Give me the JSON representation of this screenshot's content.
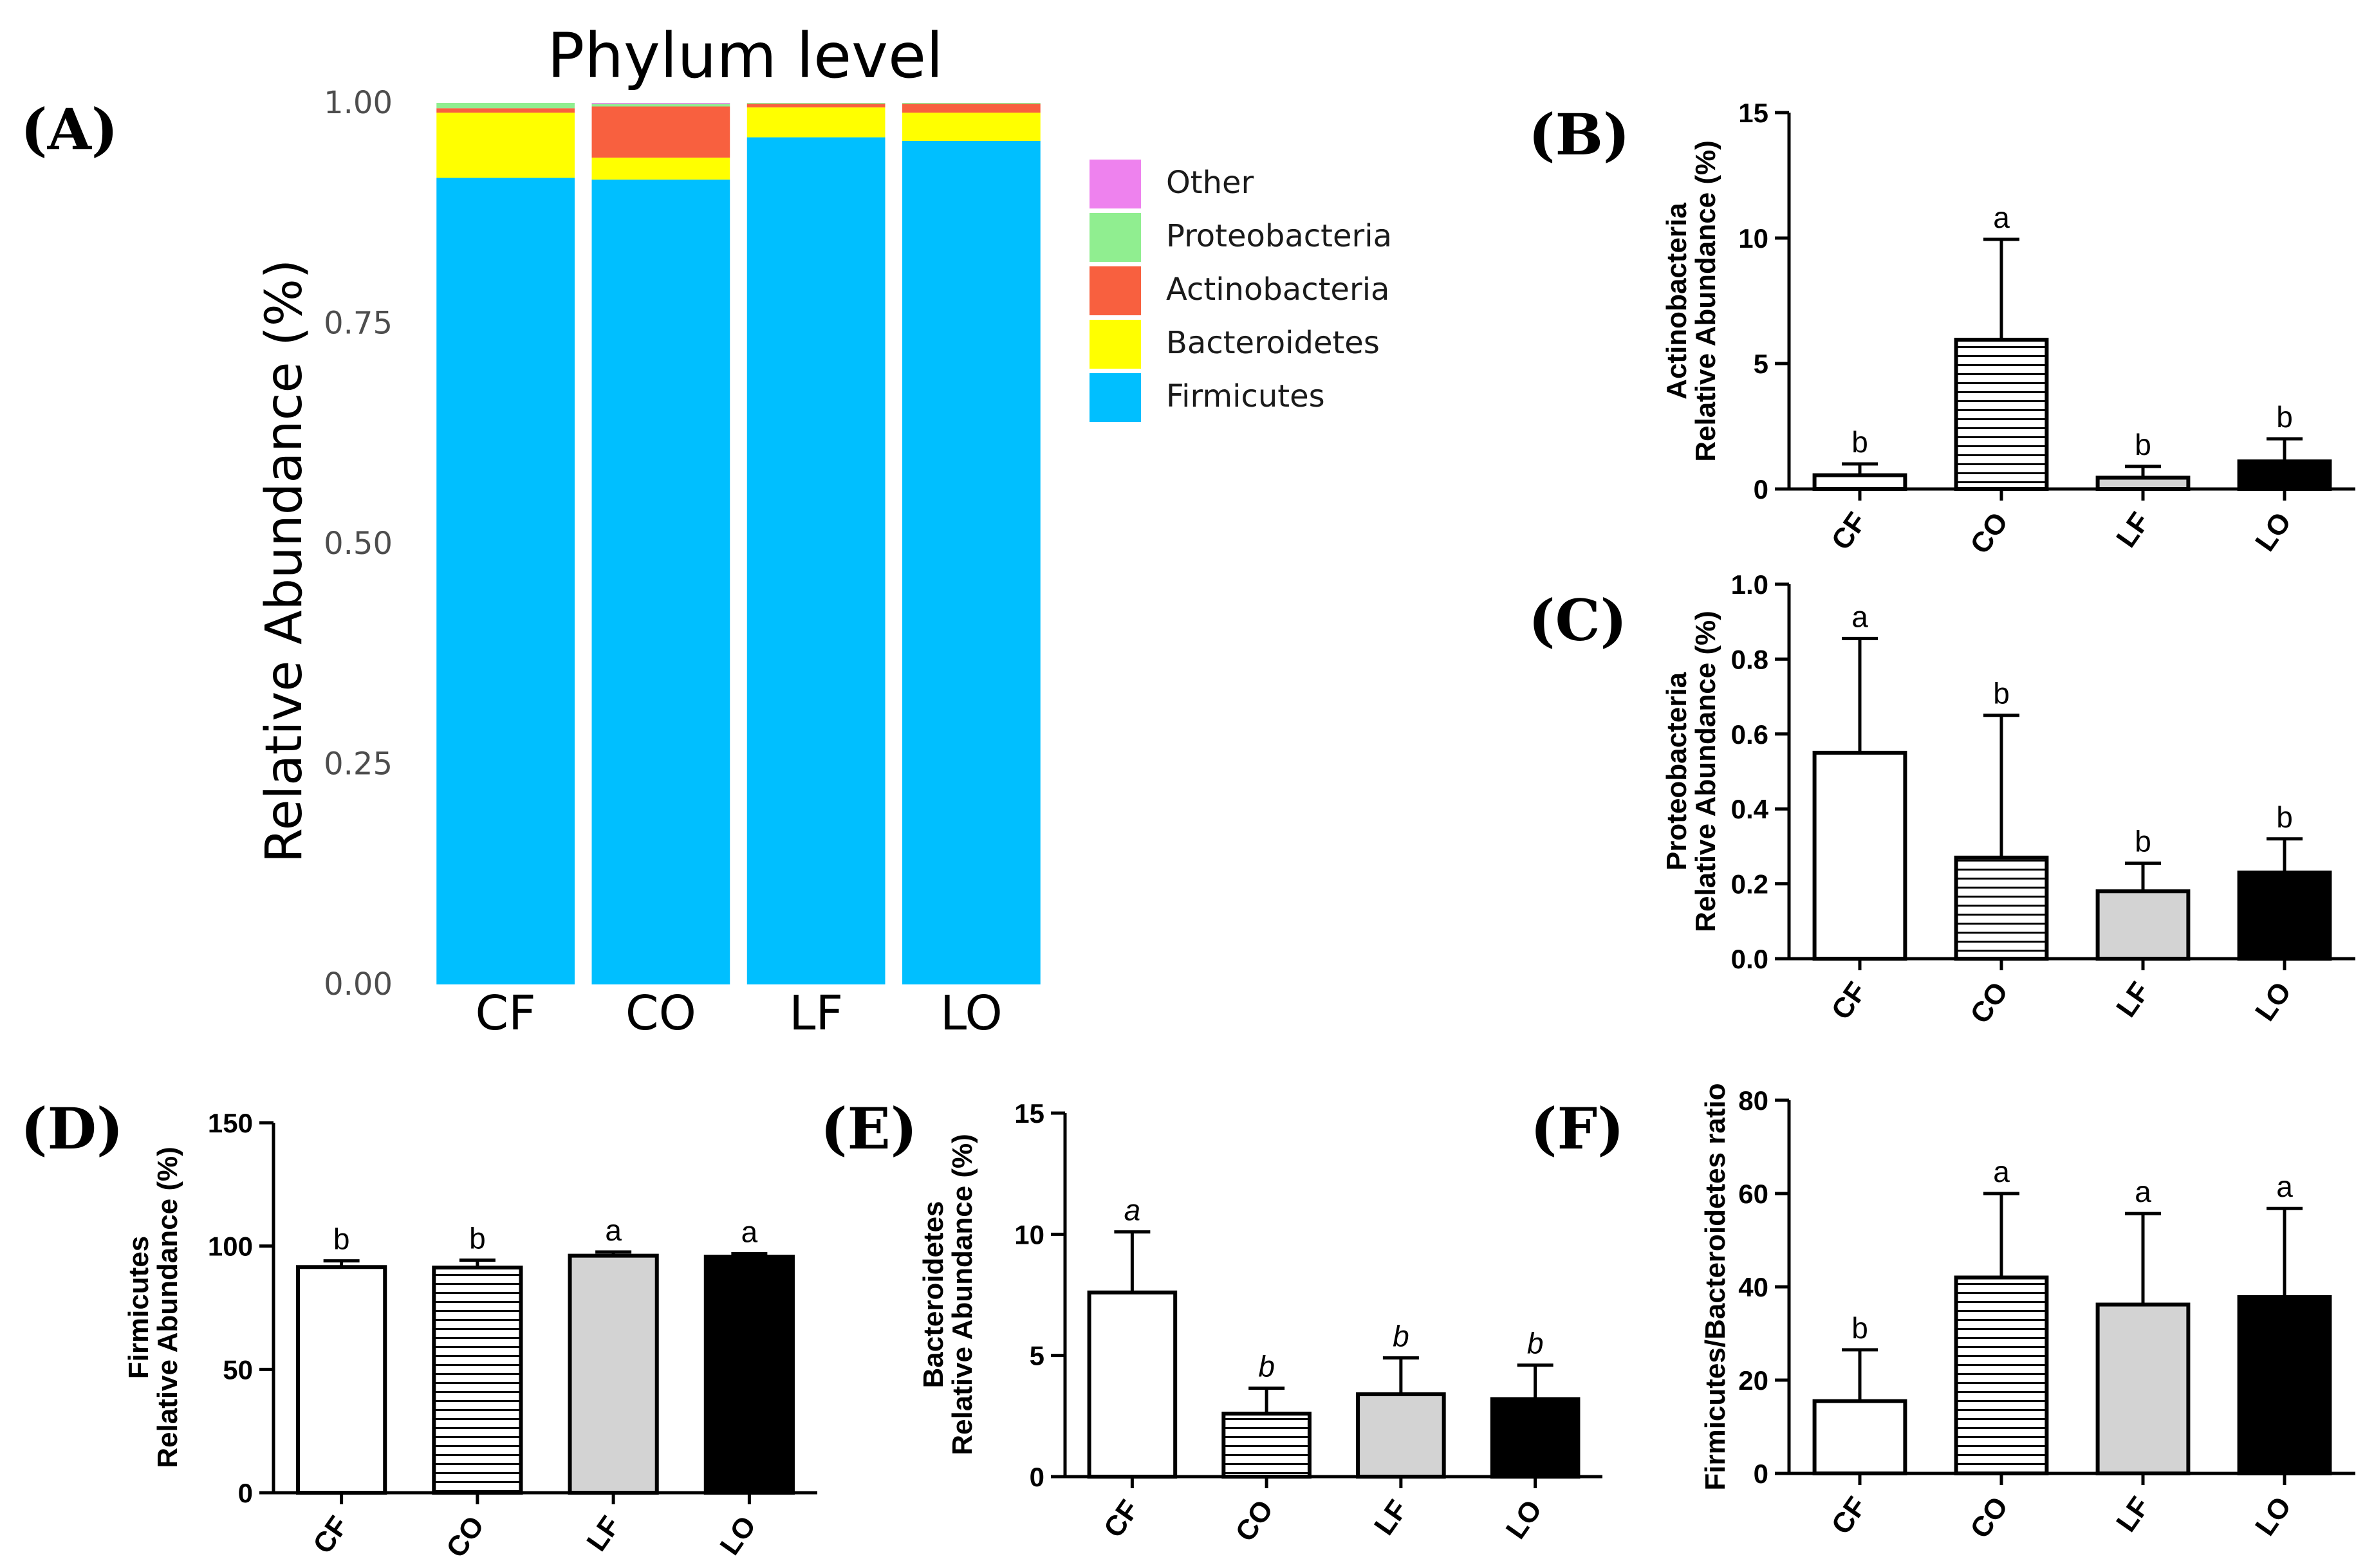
{
  "chart_data": [
    {
      "id": "A",
      "panel_label": "(A)",
      "type": "bar",
      "stacked": true,
      "title": "Phylum level",
      "ylabel": "Relative Abundance (%)",
      "ylim": [
        0,
        1
      ],
      "yticks": [
        "0.00",
        "0.25",
        "0.50",
        "0.75",
        "1.00"
      ],
      "categories": [
        "CF",
        "CO",
        "LF",
        "LO"
      ],
      "legend_position": "right",
      "series": [
        {
          "name": "Firmicutes",
          "color": "#00BFFF",
          "values": [
            0.915,
            0.913,
            0.961,
            0.957
          ]
        },
        {
          "name": "Bacteroidetes",
          "color": "#FFFF00",
          "values": [
            0.074,
            0.025,
            0.034,
            0.032
          ]
        },
        {
          "name": "Actinobacteria",
          "color": "#F8603F",
          "values": [
            0.005,
            0.058,
            0.004,
            0.01
          ]
        },
        {
          "name": "Proteobacteria",
          "color": "#90EE90",
          "values": [
            0.006,
            0.003,
            0.001,
            0.001
          ]
        },
        {
          "name": "Other",
          "color": "#EE82EE",
          "values": [
            0.0,
            0.001,
            0.0,
            0.0
          ]
        }
      ],
      "legend_order": [
        "Other",
        "Proteobacteria",
        "Actinobacteria",
        "Bacteroidetes",
        "Firmicutes"
      ]
    },
    {
      "id": "B",
      "panel_label": "(B)",
      "type": "bar",
      "ylabel_lines": [
        "Actinobacteria",
        "Relative Abundance (%)"
      ],
      "ylim": [
        0,
        15
      ],
      "yticks": [
        "0",
        "5",
        "10",
        "15"
      ],
      "categories": [
        "CF",
        "CO",
        "LF",
        "LO"
      ],
      "values": [
        0.55,
        5.95,
        0.45,
        1.1
      ],
      "errors": [
        0.45,
        4.0,
        0.45,
        0.9
      ],
      "significance": [
        "b",
        "a",
        "b",
        "b"
      ],
      "italic_letters": false
    },
    {
      "id": "C",
      "panel_label": "(C)",
      "type": "bar",
      "ylabel_lines": [
        "Proteobacteria",
        "Relative Abundance (%)"
      ],
      "ylim": [
        0,
        1.0
      ],
      "yticks": [
        "0.0",
        "0.2",
        "0.4",
        "0.6",
        "0.8",
        "1.0"
      ],
      "categories": [
        "CF",
        "CO",
        "LF",
        "LO"
      ],
      "values": [
        0.55,
        0.27,
        0.18,
        0.23
      ],
      "errors": [
        0.305,
        0.38,
        0.075,
        0.09
      ],
      "significance": [
        "a",
        "b",
        "b",
        "b"
      ],
      "italic_letters": false
    },
    {
      "id": "D",
      "panel_label": "(D)",
      "type": "bar",
      "ylabel_lines": [
        "Firmicutes",
        "Relative Abundance (%)"
      ],
      "ylim": [
        0,
        150
      ],
      "yticks": [
        "0",
        "50",
        "100",
        "150"
      ],
      "categories": [
        "CF",
        "CO",
        "LF",
        "LO"
      ],
      "values": [
        91.5,
        91.3,
        96.1,
        95.7
      ],
      "errors": [
        2.5,
        3.0,
        1.5,
        1.2
      ],
      "significance": [
        "b",
        "b",
        "a",
        "a"
      ],
      "italic_letters": false
    },
    {
      "id": "E",
      "panel_label": "(E)",
      "type": "bar",
      "ylabel_lines": [
        "Bacteroidetes",
        "Relative Abundance (%)"
      ],
      "ylim": [
        0,
        15
      ],
      "yticks": [
        "0",
        "5",
        "10",
        "15"
      ],
      "categories": [
        "CF",
        "CO",
        "LF",
        "LO"
      ],
      "values": [
        7.6,
        2.6,
        3.4,
        3.2
      ],
      "errors": [
        2.5,
        1.05,
        1.5,
        1.4
      ],
      "significance": [
        "a",
        "b",
        "b",
        "b"
      ],
      "italic_letters": true
    },
    {
      "id": "F",
      "panel_label": "(F)",
      "type": "bar",
      "ylabel_lines": [
        "Firmicutes/Bacteroidetes ratio"
      ],
      "ylim": [
        0,
        80
      ],
      "yticks": [
        "0",
        "20",
        "40",
        "60",
        "80"
      ],
      "categories": [
        "CF",
        "CO",
        "LF",
        "LO"
      ],
      "values": [
        15.5,
        42.0,
        36.2,
        37.8
      ],
      "errors": [
        11.0,
        18.0,
        19.5,
        19.0
      ],
      "significance": [
        "b",
        "a",
        "a",
        "a"
      ],
      "italic_letters": false
    }
  ],
  "bar_styles": {
    "CF": {
      "fill": "#ffffff",
      "pattern": "none"
    },
    "CO": {
      "fill": "#ffffff",
      "pattern": "horizontal-lines"
    },
    "LF": {
      "fill": "#d3d3d3",
      "pattern": "none"
    },
    "LO": {
      "fill": "#000000",
      "pattern": "none"
    }
  }
}
